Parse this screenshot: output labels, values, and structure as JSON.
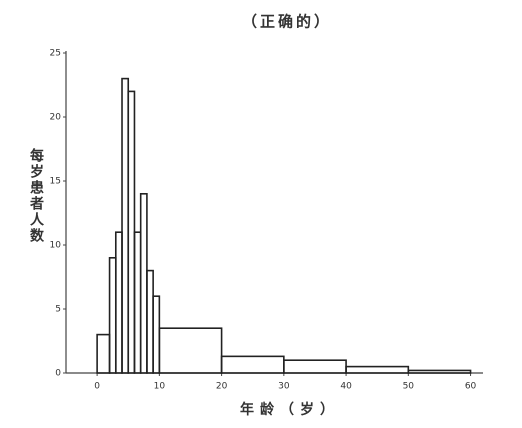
{
  "chart_data": {
    "type": "histogram",
    "title": "（正确的）",
    "y_label": "每岁患者人数",
    "x_label": "年龄（岁）",
    "bins": [
      0,
      2,
      3,
      4,
      5,
      6,
      7,
      8,
      9,
      10,
      20,
      30,
      40,
      50,
      60
    ],
    "counts": [
      3,
      9,
      11,
      23,
      22,
      11,
      14,
      8,
      6,
      3.5,
      1.3,
      1,
      0.5,
      0.2
    ],
    "color": "#222222",
    "xlim": [
      -5,
      62
    ],
    "xticks": [
      0,
      10,
      20,
      30,
      40,
      50,
      60
    ],
    "ylim": [
      0,
      25
    ],
    "yticks": [
      0,
      5,
      10,
      15,
      20,
      25
    ],
    "grid": false
  }
}
